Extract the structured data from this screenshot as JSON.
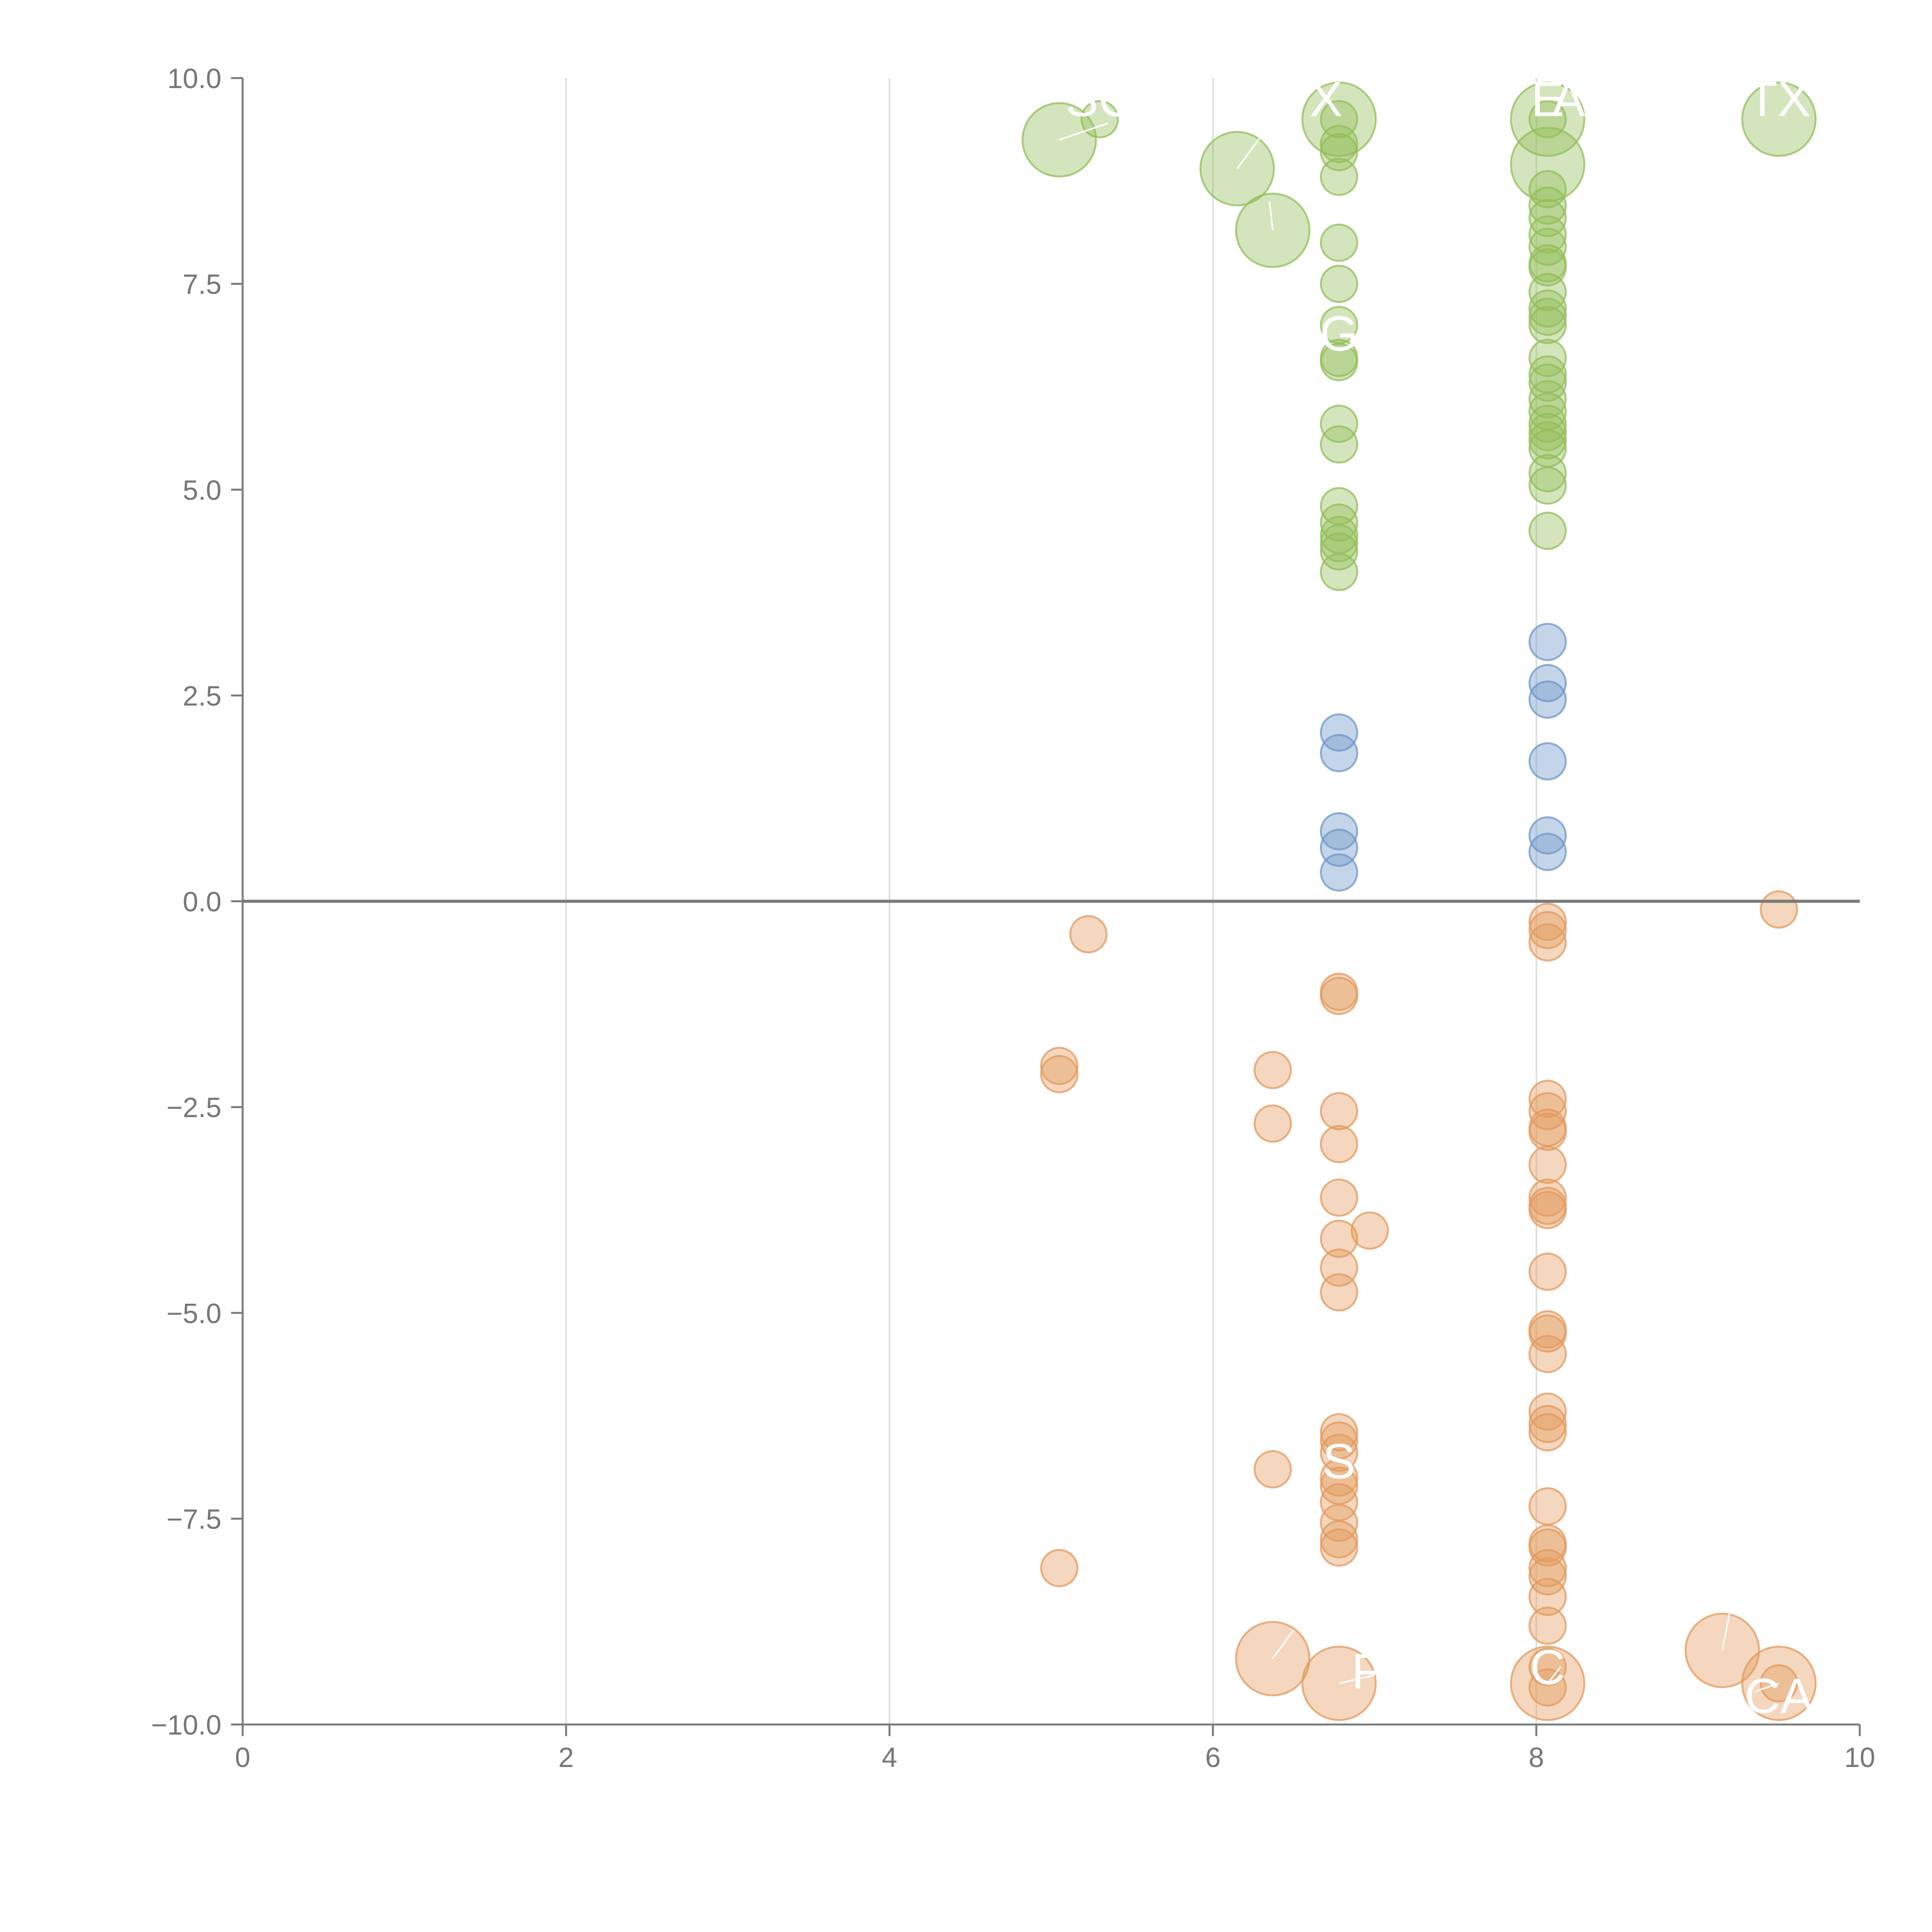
{
  "chart_data": {
    "type": "scatter",
    "title": "",
    "xlabel": "",
    "ylabel": "",
    "xlim": [
      0,
      10
    ],
    "ylim": [
      -10,
      10
    ],
    "x_ticks": [
      "0",
      "2",
      "4",
      "6",
      "8",
      "10"
    ],
    "y_ticks": [
      "10.0",
      "7.5",
      "5.0",
      "2.5",
      "0.0",
      "−2.5",
      "−5.0",
      "−7.5",
      "−10.0"
    ],
    "grid": "vertical lines only",
    "legend": "none",
    "colors": {
      "green": "#93bd5a",
      "blue": "#6f95c9",
      "orange": "#e39a5d",
      "axis": "#7a7a7a",
      "grid": "#dddddd"
    },
    "series": [
      {
        "color": "green",
        "points": [
          {
            "x": 5.05,
            "y": 9.25,
            "r": "large"
          },
          {
            "x": 5.3,
            "y": 9.5
          },
          {
            "x": 6.15,
            "y": 8.9,
            "r": "large"
          },
          {
            "x": 6.37,
            "y": 8.15,
            "r": "large"
          },
          {
            "x": 6.78,
            "y": 9.5,
            "r": "large"
          },
          {
            "x": 6.78,
            "y": 9.5
          },
          {
            "x": 6.78,
            "y": 9.2
          },
          {
            "x": 6.78,
            "y": 9.1
          },
          {
            "x": 6.78,
            "y": 8.8
          },
          {
            "x": 6.78,
            "y": 8.0
          },
          {
            "x": 6.78,
            "y": 7.5
          },
          {
            "x": 6.78,
            "y": 7.0
          },
          {
            "x": 6.78,
            "y": 6.6
          },
          {
            "x": 6.78,
            "y": 6.55
          },
          {
            "x": 6.78,
            "y": 5.8
          },
          {
            "x": 6.78,
            "y": 5.55
          },
          {
            "x": 6.78,
            "y": 4.8
          },
          {
            "x": 6.78,
            "y": 4.6
          },
          {
            "x": 6.78,
            "y": 4.45
          },
          {
            "x": 6.78,
            "y": 4.35
          },
          {
            "x": 6.78,
            "y": 4.25
          },
          {
            "x": 6.78,
            "y": 4.0
          },
          {
            "x": 8.07,
            "y": 9.5,
            "r": "large"
          },
          {
            "x": 8.07,
            "y": 9.5
          },
          {
            "x": 8.07,
            "y": 8.95,
            "r": "large"
          },
          {
            "x": 8.07,
            "y": 8.65
          },
          {
            "x": 8.07,
            "y": 8.45
          },
          {
            "x": 8.07,
            "y": 8.3
          },
          {
            "x": 8.07,
            "y": 8.1
          },
          {
            "x": 8.07,
            "y": 7.95
          },
          {
            "x": 8.07,
            "y": 7.75
          },
          {
            "x": 8.07,
            "y": 7.7
          },
          {
            "x": 8.07,
            "y": 7.4
          },
          {
            "x": 8.07,
            "y": 7.2
          },
          {
            "x": 8.07,
            "y": 7.1
          },
          {
            "x": 8.07,
            "y": 7.0
          },
          {
            "x": 8.07,
            "y": 6.6
          },
          {
            "x": 8.07,
            "y": 6.4
          },
          {
            "x": 8.07,
            "y": 6.3
          },
          {
            "x": 8.07,
            "y": 6.1
          },
          {
            "x": 8.07,
            "y": 5.95
          },
          {
            "x": 8.07,
            "y": 5.8
          },
          {
            "x": 8.07,
            "y": 5.7
          },
          {
            "x": 8.07,
            "y": 5.6
          },
          {
            "x": 8.07,
            "y": 5.5
          },
          {
            "x": 8.07,
            "y": 5.2
          },
          {
            "x": 8.07,
            "y": 5.05
          },
          {
            "x": 8.07,
            "y": 4.5
          },
          {
            "x": 9.5,
            "y": 9.5,
            "r": "large"
          }
        ]
      },
      {
        "color": "blue",
        "points": [
          {
            "x": 6.78,
            "y": 2.05
          },
          {
            "x": 6.78,
            "y": 1.8
          },
          {
            "x": 6.78,
            "y": 0.85
          },
          {
            "x": 6.78,
            "y": 0.65
          },
          {
            "x": 6.78,
            "y": 0.35
          },
          {
            "x": 8.07,
            "y": 3.15
          },
          {
            "x": 8.07,
            "y": 2.65
          },
          {
            "x": 8.07,
            "y": 2.45
          },
          {
            "x": 8.07,
            "y": 1.7
          },
          {
            "x": 8.07,
            "y": 0.8
          },
          {
            "x": 8.07,
            "y": 0.6
          }
        ]
      },
      {
        "color": "orange",
        "points": [
          {
            "x": 5.23,
            "y": -0.4
          },
          {
            "x": 5.05,
            "y": -2.0
          },
          {
            "x": 5.05,
            "y": -2.1
          },
          {
            "x": 5.05,
            "y": -8.1
          },
          {
            "x": 6.37,
            "y": -2.05
          },
          {
            "x": 6.37,
            "y": -2.7
          },
          {
            "x": 6.37,
            "y": -6.9
          },
          {
            "x": 6.37,
            "y": -9.2,
            "r": "large"
          },
          {
            "x": 6.78,
            "y": -1.1
          },
          {
            "x": 6.78,
            "y": -1.15
          },
          {
            "x": 6.78,
            "y": -2.55
          },
          {
            "x": 6.78,
            "y": -2.95
          },
          {
            "x": 6.78,
            "y": -3.6
          },
          {
            "x": 6.78,
            "y": -4.1
          },
          {
            "x": 6.78,
            "y": -4.45
          },
          {
            "x": 6.78,
            "y": -4.75
          },
          {
            "x": 6.78,
            "y": -6.45
          },
          {
            "x": 6.78,
            "y": -6.55
          },
          {
            "x": 6.78,
            "y": -6.7
          },
          {
            "x": 6.78,
            "y": -7.0
          },
          {
            "x": 6.78,
            "y": -7.1
          },
          {
            "x": 6.78,
            "y": -7.3
          },
          {
            "x": 6.78,
            "y": -7.55
          },
          {
            "x": 6.78,
            "y": -7.75
          },
          {
            "x": 6.78,
            "y": -7.85
          },
          {
            "x": 6.78,
            "y": -9.5,
            "r": "large"
          },
          {
            "x": 6.97,
            "y": -4.0
          },
          {
            "x": 8.07,
            "y": -0.25
          },
          {
            "x": 8.07,
            "y": -0.35
          },
          {
            "x": 8.07,
            "y": -0.5
          },
          {
            "x": 8.07,
            "y": -2.4
          },
          {
            "x": 8.07,
            "y": -2.55
          },
          {
            "x": 8.07,
            "y": -2.75
          },
          {
            "x": 8.07,
            "y": -2.8
          },
          {
            "x": 8.07,
            "y": -3.2
          },
          {
            "x": 8.07,
            "y": -3.6
          },
          {
            "x": 8.07,
            "y": -3.7
          },
          {
            "x": 8.07,
            "y": -3.75
          },
          {
            "x": 8.07,
            "y": -4.5
          },
          {
            "x": 8.07,
            "y": -5.2
          },
          {
            "x": 8.07,
            "y": -5.25
          },
          {
            "x": 8.07,
            "y": -5.5
          },
          {
            "x": 8.07,
            "y": -6.2
          },
          {
            "x": 8.07,
            "y": -6.35
          },
          {
            "x": 8.07,
            "y": -6.45
          },
          {
            "x": 8.07,
            "y": -7.35
          },
          {
            "x": 8.07,
            "y": -7.8
          },
          {
            "x": 8.07,
            "y": -7.85
          },
          {
            "x": 8.07,
            "y": -8.1
          },
          {
            "x": 8.07,
            "y": -8.2
          },
          {
            "x": 8.07,
            "y": -8.45
          },
          {
            "x": 8.07,
            "y": -8.8
          },
          {
            "x": 8.07,
            "y": -9.3
          },
          {
            "x": 8.07,
            "y": -9.5,
            "r": "large"
          },
          {
            "x": 8.07,
            "y": -9.55
          },
          {
            "x": 9.15,
            "y": -9.1,
            "r": "large"
          },
          {
            "x": 9.5,
            "y": -0.1
          },
          {
            "x": 9.5,
            "y": -9.5,
            "r": "large"
          },
          {
            "x": 9.5,
            "y": -9.5
          }
        ]
      }
    ],
    "annotations": [
      {
        "text": "SC",
        "x": 5.3,
        "y": 9.75
      },
      {
        "text": "X",
        "x": 6.7,
        "y": 9.75
      },
      {
        "text": "E",
        "x": 8.07,
        "y": 9.75
      },
      {
        "text": "A",
        "x": 8.2,
        "y": 9.75
      },
      {
        "text": "TX",
        "x": 9.5,
        "y": 9.75
      },
      {
        "text": "G",
        "x": 6.78,
        "y": 6.9
      },
      {
        "text": "S",
        "x": 6.78,
        "y": -6.8
      },
      {
        "text": "F",
        "x": 6.95,
        "y": -9.35
      },
      {
        "text": "C",
        "x": 8.07,
        "y": -9.3
      },
      {
        "text": "CA",
        "x": 9.5,
        "y": -9.65
      }
    ],
    "leader_lines": [
      {
        "x1": 5.05,
        "y1": 9.25,
        "x2": 5.35,
        "y2": 9.45
      },
      {
        "x1": 6.15,
        "y1": 8.9,
        "x2": 6.3,
        "y2": 9.3
      },
      {
        "x1": 6.37,
        "y1": 8.15,
        "x2": 6.35,
        "y2": 8.5
      },
      {
        "x1": 6.37,
        "y1": -9.2,
        "x2": 6.5,
        "y2": -8.85
      },
      {
        "x1": 6.78,
        "y1": -9.5,
        "x2": 7.0,
        "y2": -9.4
      },
      {
        "x1": 8.07,
        "y1": -9.5,
        "x2": 8.15,
        "y2": -9.3
      },
      {
        "x1": 9.15,
        "y1": -9.1,
        "x2": 9.2,
        "y2": -8.6
      },
      {
        "x1": 9.5,
        "y1": -9.5,
        "x2": 9.35,
        "y2": -9.6
      }
    ]
  }
}
